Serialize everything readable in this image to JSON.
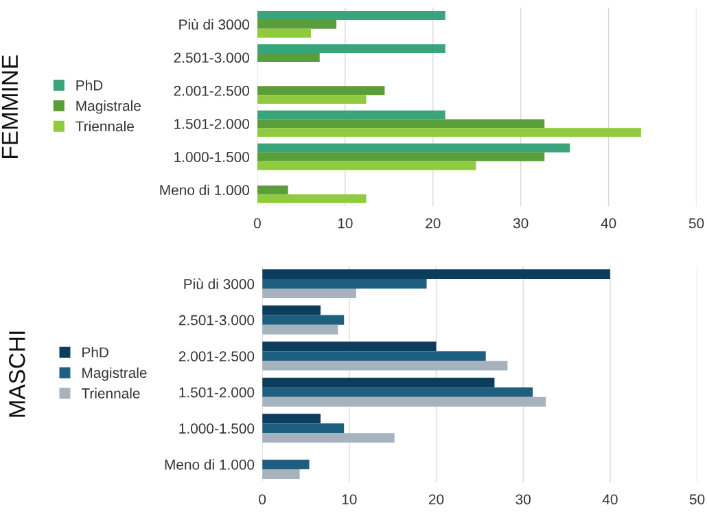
{
  "chart_data": [
    {
      "type": "bar",
      "orientation": "horizontal",
      "ylabel": "FEMMINE",
      "categories": [
        "Più di 3000",
        "2.501-3.000",
        "2.001-2.500",
        "1.501-2.000",
        "1.000-1.500",
        "Meno di 1.000"
      ],
      "series": [
        {
          "name": "PhD",
          "color": "#3aa57a",
          "values": [
            21.4,
            21.4,
            null,
            21.4,
            35.6,
            null
          ]
        },
        {
          "name": "Magistrale",
          "color": "#5a9e3a",
          "values": [
            9.0,
            7.1,
            14.5,
            32.7,
            32.7,
            3.5
          ]
        },
        {
          "name": "Triennale",
          "color": "#8fca3f",
          "values": [
            6.1,
            null,
            12.4,
            43.7,
            24.9,
            12.4
          ]
        }
      ],
      "xlim": [
        0,
        50
      ],
      "xticks": [
        0,
        10,
        20,
        30,
        40,
        50
      ],
      "grid": "x",
      "legend": "left"
    },
    {
      "type": "bar",
      "orientation": "horizontal",
      "ylabel": "MASCHI",
      "categories": [
        "Più di 3000",
        "2.501-3.000",
        "2.001-2.500",
        "1.501-2.000",
        "1.000-1.500",
        "Meno di 1.000"
      ],
      "series": [
        {
          "name": "PhD",
          "color": "#0d3d5c",
          "values": [
            40.0,
            6.7,
            20.0,
            26.7,
            6.7,
            null
          ]
        },
        {
          "name": "Magistrale",
          "color": "#1e5f80",
          "values": [
            18.9,
            9.4,
            25.7,
            31.1,
            9.4,
            5.4
          ]
        },
        {
          "name": "Triennale",
          "color": "#a6b3be",
          "values": [
            10.8,
            8.7,
            28.2,
            32.6,
            15.2,
            4.3
          ]
        }
      ],
      "xlim": [
        0,
        50
      ],
      "xticks": [
        0,
        10,
        20,
        30,
        40,
        50
      ],
      "grid": "x",
      "legend": "left"
    }
  ]
}
